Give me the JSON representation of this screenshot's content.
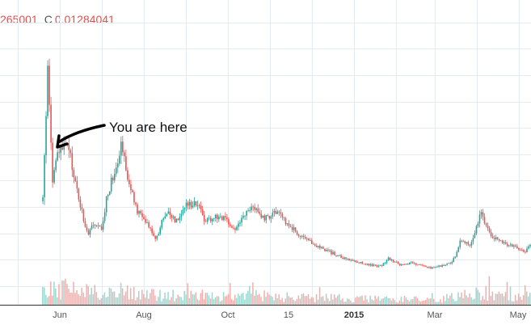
{
  "ohlc_readout": {
    "partial_value": "265001",
    "close_label": "C",
    "close_value": "0.01284041"
  },
  "chart_data": {
    "type": "candlestick",
    "x_tick_labels": [
      "Jun",
      "Aug",
      "Oct",
      "15",
      "2015",
      "Mar",
      "May"
    ],
    "bold_tick": "2015",
    "y_range": [
      0,
      0.05
    ],
    "grid": true,
    "annotation": "You are here",
    "colors": {
      "up": "#26a69a",
      "down": "#ef5350",
      "grid": "#e6ebf0",
      "axis": "#333333"
    },
    "price_path": [
      [
        0,
        0.018
      ],
      [
        1,
        0.046
      ],
      [
        2,
        0.022
      ],
      [
        3,
        0.028
      ],
      [
        5,
        0.03
      ],
      [
        7,
        0.02
      ],
      [
        9,
        0.011
      ],
      [
        10,
        0.013
      ],
      [
        12,
        0.012
      ],
      [
        13,
        0.019
      ],
      [
        15,
        0.026
      ],
      [
        16,
        0.031
      ],
      [
        17,
        0.024
      ],
      [
        19,
        0.016
      ],
      [
        21,
        0.014
      ],
      [
        23,
        0.01
      ],
      [
        25,
        0.016
      ],
      [
        27,
        0.014
      ],
      [
        29,
        0.017
      ],
      [
        31,
        0.018
      ],
      [
        33,
        0.014
      ],
      [
        36,
        0.015
      ],
      [
        39,
        0.012
      ],
      [
        41,
        0.015
      ],
      [
        43,
        0.017
      ],
      [
        45,
        0.014
      ],
      [
        47,
        0.016
      ],
      [
        49,
        0.014
      ],
      [
        51,
        0.012
      ],
      [
        53,
        0.01
      ],
      [
        55,
        0.009
      ],
      [
        57,
        0.008
      ],
      [
        59,
        0.007
      ],
      [
        61,
        0.006
      ],
      [
        63,
        0.0055
      ],
      [
        65,
        0.005
      ],
      [
        67,
        0.0045
      ],
      [
        69,
        0.0045
      ],
      [
        70,
        0.006
      ],
      [
        71,
        0.0055
      ],
      [
        73,
        0.0045
      ],
      [
        75,
        0.005
      ],
      [
        77,
        0.0045
      ],
      [
        79,
        0.004
      ],
      [
        81,
        0.0045
      ],
      [
        83,
        0.005
      ],
      [
        84,
        0.007
      ],
      [
        85,
        0.01
      ],
      [
        87,
        0.009
      ],
      [
        89,
        0.016
      ],
      [
        90,
        0.0125
      ],
      [
        92,
        0.01
      ],
      [
        94,
        0.009
      ],
      [
        96,
        0.0085
      ],
      [
        98,
        0.0075
      ],
      [
        99,
        0.009
      ]
    ],
    "volume_profile": [
      [
        0,
        0.8
      ],
      [
        2,
        0.55
      ],
      [
        5,
        0.6
      ],
      [
        9,
        0.5
      ],
      [
        12,
        0.45
      ],
      [
        15,
        0.5
      ],
      [
        18,
        0.45
      ],
      [
        22,
        0.4
      ],
      [
        30,
        0.35
      ],
      [
        40,
        0.35
      ],
      [
        50,
        0.3
      ],
      [
        60,
        0.25
      ],
      [
        70,
        0.2
      ],
      [
        80,
        0.2
      ],
      [
        85,
        0.35
      ],
      [
        90,
        0.45
      ],
      [
        95,
        0.35
      ],
      [
        99,
        0.3
      ]
    ]
  }
}
